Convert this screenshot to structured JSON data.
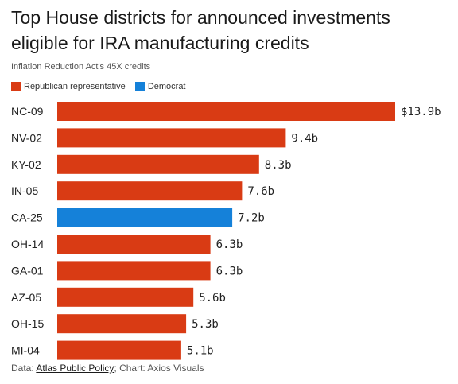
{
  "chart_data": {
    "type": "bar",
    "orientation": "horizontal",
    "title": "Top House districts for announced investments eligible for IRA manufacturing credits",
    "subtitle": "Inflation Reduction Act's 45X credits",
    "categories": [
      "NC-09",
      "NV-02",
      "KY-02",
      "IN-05",
      "CA-25",
      "OH-14",
      "GA-01",
      "AZ-05",
      "OH-15",
      "MI-04"
    ],
    "values": [
      13.9,
      9.4,
      8.3,
      7.6,
      7.2,
      6.3,
      6.3,
      5.6,
      5.3,
      5.1
    ],
    "value_labels": [
      "$13.9b",
      "9.4b",
      "8.3b",
      "7.6b",
      "7.2b",
      "6.3b",
      "6.3b",
      "5.6b",
      "5.3b",
      "5.1b"
    ],
    "party": [
      "Republican",
      "Republican",
      "Republican",
      "Republican",
      "Democrat",
      "Republican",
      "Republican",
      "Republican",
      "Republican",
      "Republican"
    ],
    "legend": [
      {
        "label": "Republican representative",
        "color": "#d93b14"
      },
      {
        "label": "Democrat",
        "color": "#1581d9"
      }
    ],
    "colors": {
      "Republican": "#d93b14",
      "Democrat": "#1581d9"
    },
    "unit": "billion USD",
    "xlim": [
      0,
      13.9
    ],
    "grid": false,
    "legend_position": "top-left"
  },
  "footer": {
    "data_prefix": "Data: ",
    "source_link": "Atlas Public Policy",
    "chart_credit": "; Chart: Axios Visuals"
  }
}
